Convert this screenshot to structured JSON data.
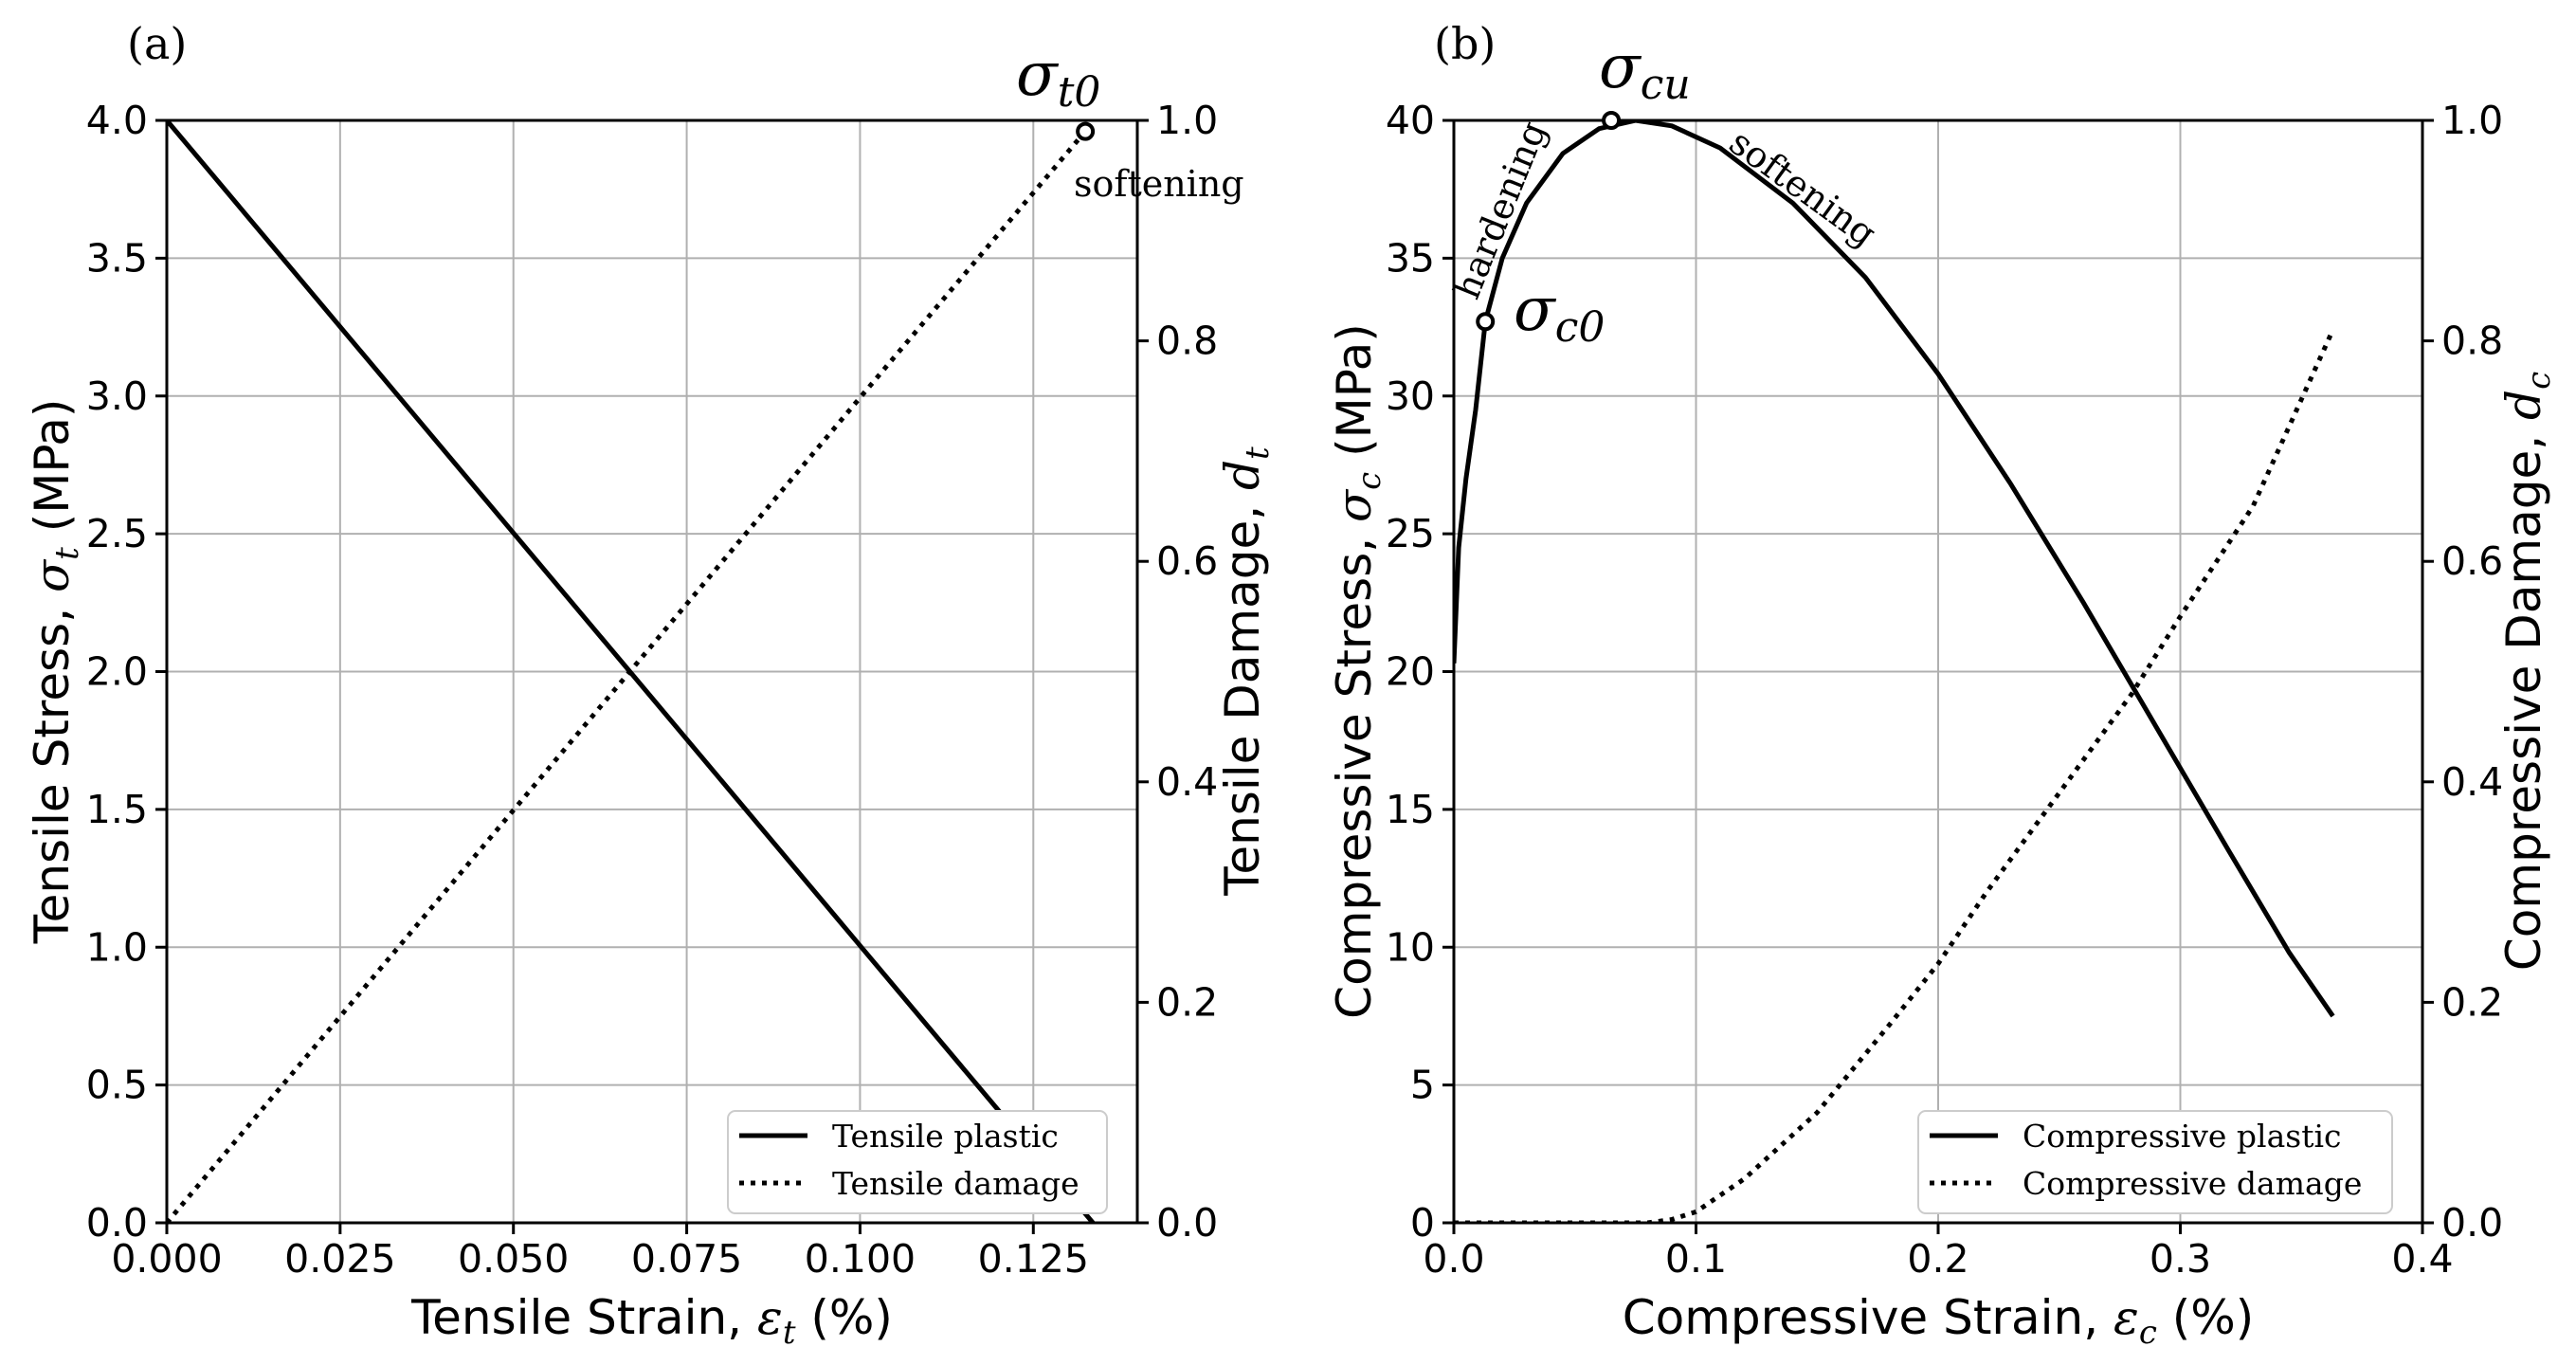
{
  "chart_data": [
    {
      "type": "line",
      "panel_label": "(a)",
      "xlabel_text": "Tensile Strain, ",
      "xlabel_symbol": "ε",
      "xlabel_sub": "t",
      "xlabel_unit": " (%)",
      "ylabel_text": "Tensile Stress, ",
      "ylabel_symbol": "σ",
      "ylabel_sub": "t",
      "ylabel_unit": " (MPa)",
      "y2label_text": "Tensile Damage, ",
      "y2label_symbol": "d",
      "y2label_sub": "t",
      "xlim": [
        0,
        0.14
      ],
      "ylim": [
        0,
        4.0
      ],
      "y2lim": [
        0,
        1.0
      ],
      "xticks": [
        "0.000",
        "0.025",
        "0.050",
        "0.075",
        "0.100",
        "0.125"
      ],
      "xtick_values": [
        0,
        0.025,
        0.05,
        0.075,
        0.1,
        0.125
      ],
      "yticks": [
        "0.0",
        "0.5",
        "1.0",
        "1.5",
        "2.0",
        "2.5",
        "3.0",
        "3.5",
        "4.0"
      ],
      "ytick_values": [
        0,
        0.5,
        1.0,
        1.5,
        2.0,
        2.5,
        3.0,
        3.5,
        4.0
      ],
      "y2ticks": [
        "0.0",
        "0.2",
        "0.4",
        "0.6",
        "0.8",
        "1.0"
      ],
      "y2tick_values": [
        0,
        0.2,
        0.4,
        0.6,
        0.8,
        1.0
      ],
      "grid": true,
      "legend_position": "bottom-right",
      "series": [
        {
          "name": "Tensile plastic",
          "axis": "left",
          "style": "solid",
          "x": [
            0,
            0.0334,
            0.0668,
            0.1002,
            0.1336
          ],
          "y": [
            4.0,
            3.0,
            2.0,
            1.0,
            0.0
          ]
        },
        {
          "name": "Tensile damage",
          "axis": "right",
          "style": "dotted",
          "x": [
            0,
            0.0334,
            0.0668,
            0.1002,
            0.1325
          ],
          "y": [
            0.0,
            0.25,
            0.5,
            0.75,
            0.99
          ]
        }
      ],
      "annotations": [
        {
          "symbol": "σ",
          "sub": "t0",
          "x": 0.1325,
          "y2": 0.99
        },
        {
          "text": "softening"
        }
      ]
    },
    {
      "type": "line",
      "panel_label": "(b)",
      "xlabel_text": "Compressive Strain, ",
      "xlabel_symbol": "ε",
      "xlabel_sub": "c",
      "xlabel_unit": " (%)",
      "ylabel_text": "Compressive Stress, ",
      "ylabel_symbol": "σ",
      "ylabel_sub": "c",
      "ylabel_unit": " (MPa)",
      "y2label_text": "Compressive Damage, ",
      "y2label_symbol": "d",
      "y2label_sub": "c",
      "xlim": [
        0,
        0.4
      ],
      "ylim": [
        0,
        40
      ],
      "y2lim": [
        0,
        1.0
      ],
      "xticks": [
        "0.0",
        "0.1",
        "0.2",
        "0.3",
        "0.4"
      ],
      "xtick_values": [
        0,
        0.1,
        0.2,
        0.3,
        0.4
      ],
      "yticks": [
        "0",
        "5",
        "10",
        "15",
        "20",
        "25",
        "30",
        "35",
        "40"
      ],
      "ytick_values": [
        0,
        5,
        10,
        15,
        20,
        25,
        30,
        35,
        40
      ],
      "y2ticks": [
        "0.0",
        "0.2",
        "0.4",
        "0.6",
        "0.8",
        "1.0"
      ],
      "y2tick_values": [
        0,
        0.2,
        0.4,
        0.6,
        0.8,
        1.0
      ],
      "grid": true,
      "legend_position": "bottom-right",
      "series": [
        {
          "name": "Compressive plastic",
          "axis": "left",
          "style": "solid",
          "x": [
            0.0,
            0.002,
            0.005,
            0.009,
            0.013,
            0.02,
            0.03,
            0.045,
            0.06,
            0.075,
            0.09,
            0.11,
            0.14,
            0.17,
            0.2,
            0.23,
            0.26,
            0.29,
            0.32,
            0.345,
            0.363
          ],
          "y": [
            20.3,
            24.5,
            27.0,
            29.5,
            32.7,
            35.0,
            37.0,
            38.8,
            39.7,
            40.0,
            39.8,
            39.0,
            37.0,
            34.3,
            30.8,
            26.8,
            22.5,
            18.0,
            13.5,
            9.8,
            7.5
          ]
        },
        {
          "name": "Compressive damage",
          "axis": "right",
          "style": "dotted",
          "x": [
            0.0,
            0.05,
            0.08,
            0.09,
            0.1,
            0.12,
            0.15,
            0.18,
            0.2,
            0.22,
            0.25,
            0.28,
            0.3,
            0.33,
            0.363
          ],
          "y": [
            0.0,
            0.0,
            0.0,
            0.003,
            0.01,
            0.04,
            0.1,
            0.18,
            0.235,
            0.3,
            0.39,
            0.48,
            0.55,
            0.65,
            0.81
          ]
        }
      ],
      "annotations": [
        {
          "symbol": "σ",
          "sub": "c0",
          "x": 0.013,
          "y": 32.7
        },
        {
          "symbol": "σ",
          "sub": "cu",
          "x": 0.065,
          "y": 40.0
        },
        {
          "text": "hardening"
        },
        {
          "text": "softening"
        }
      ]
    }
  ]
}
